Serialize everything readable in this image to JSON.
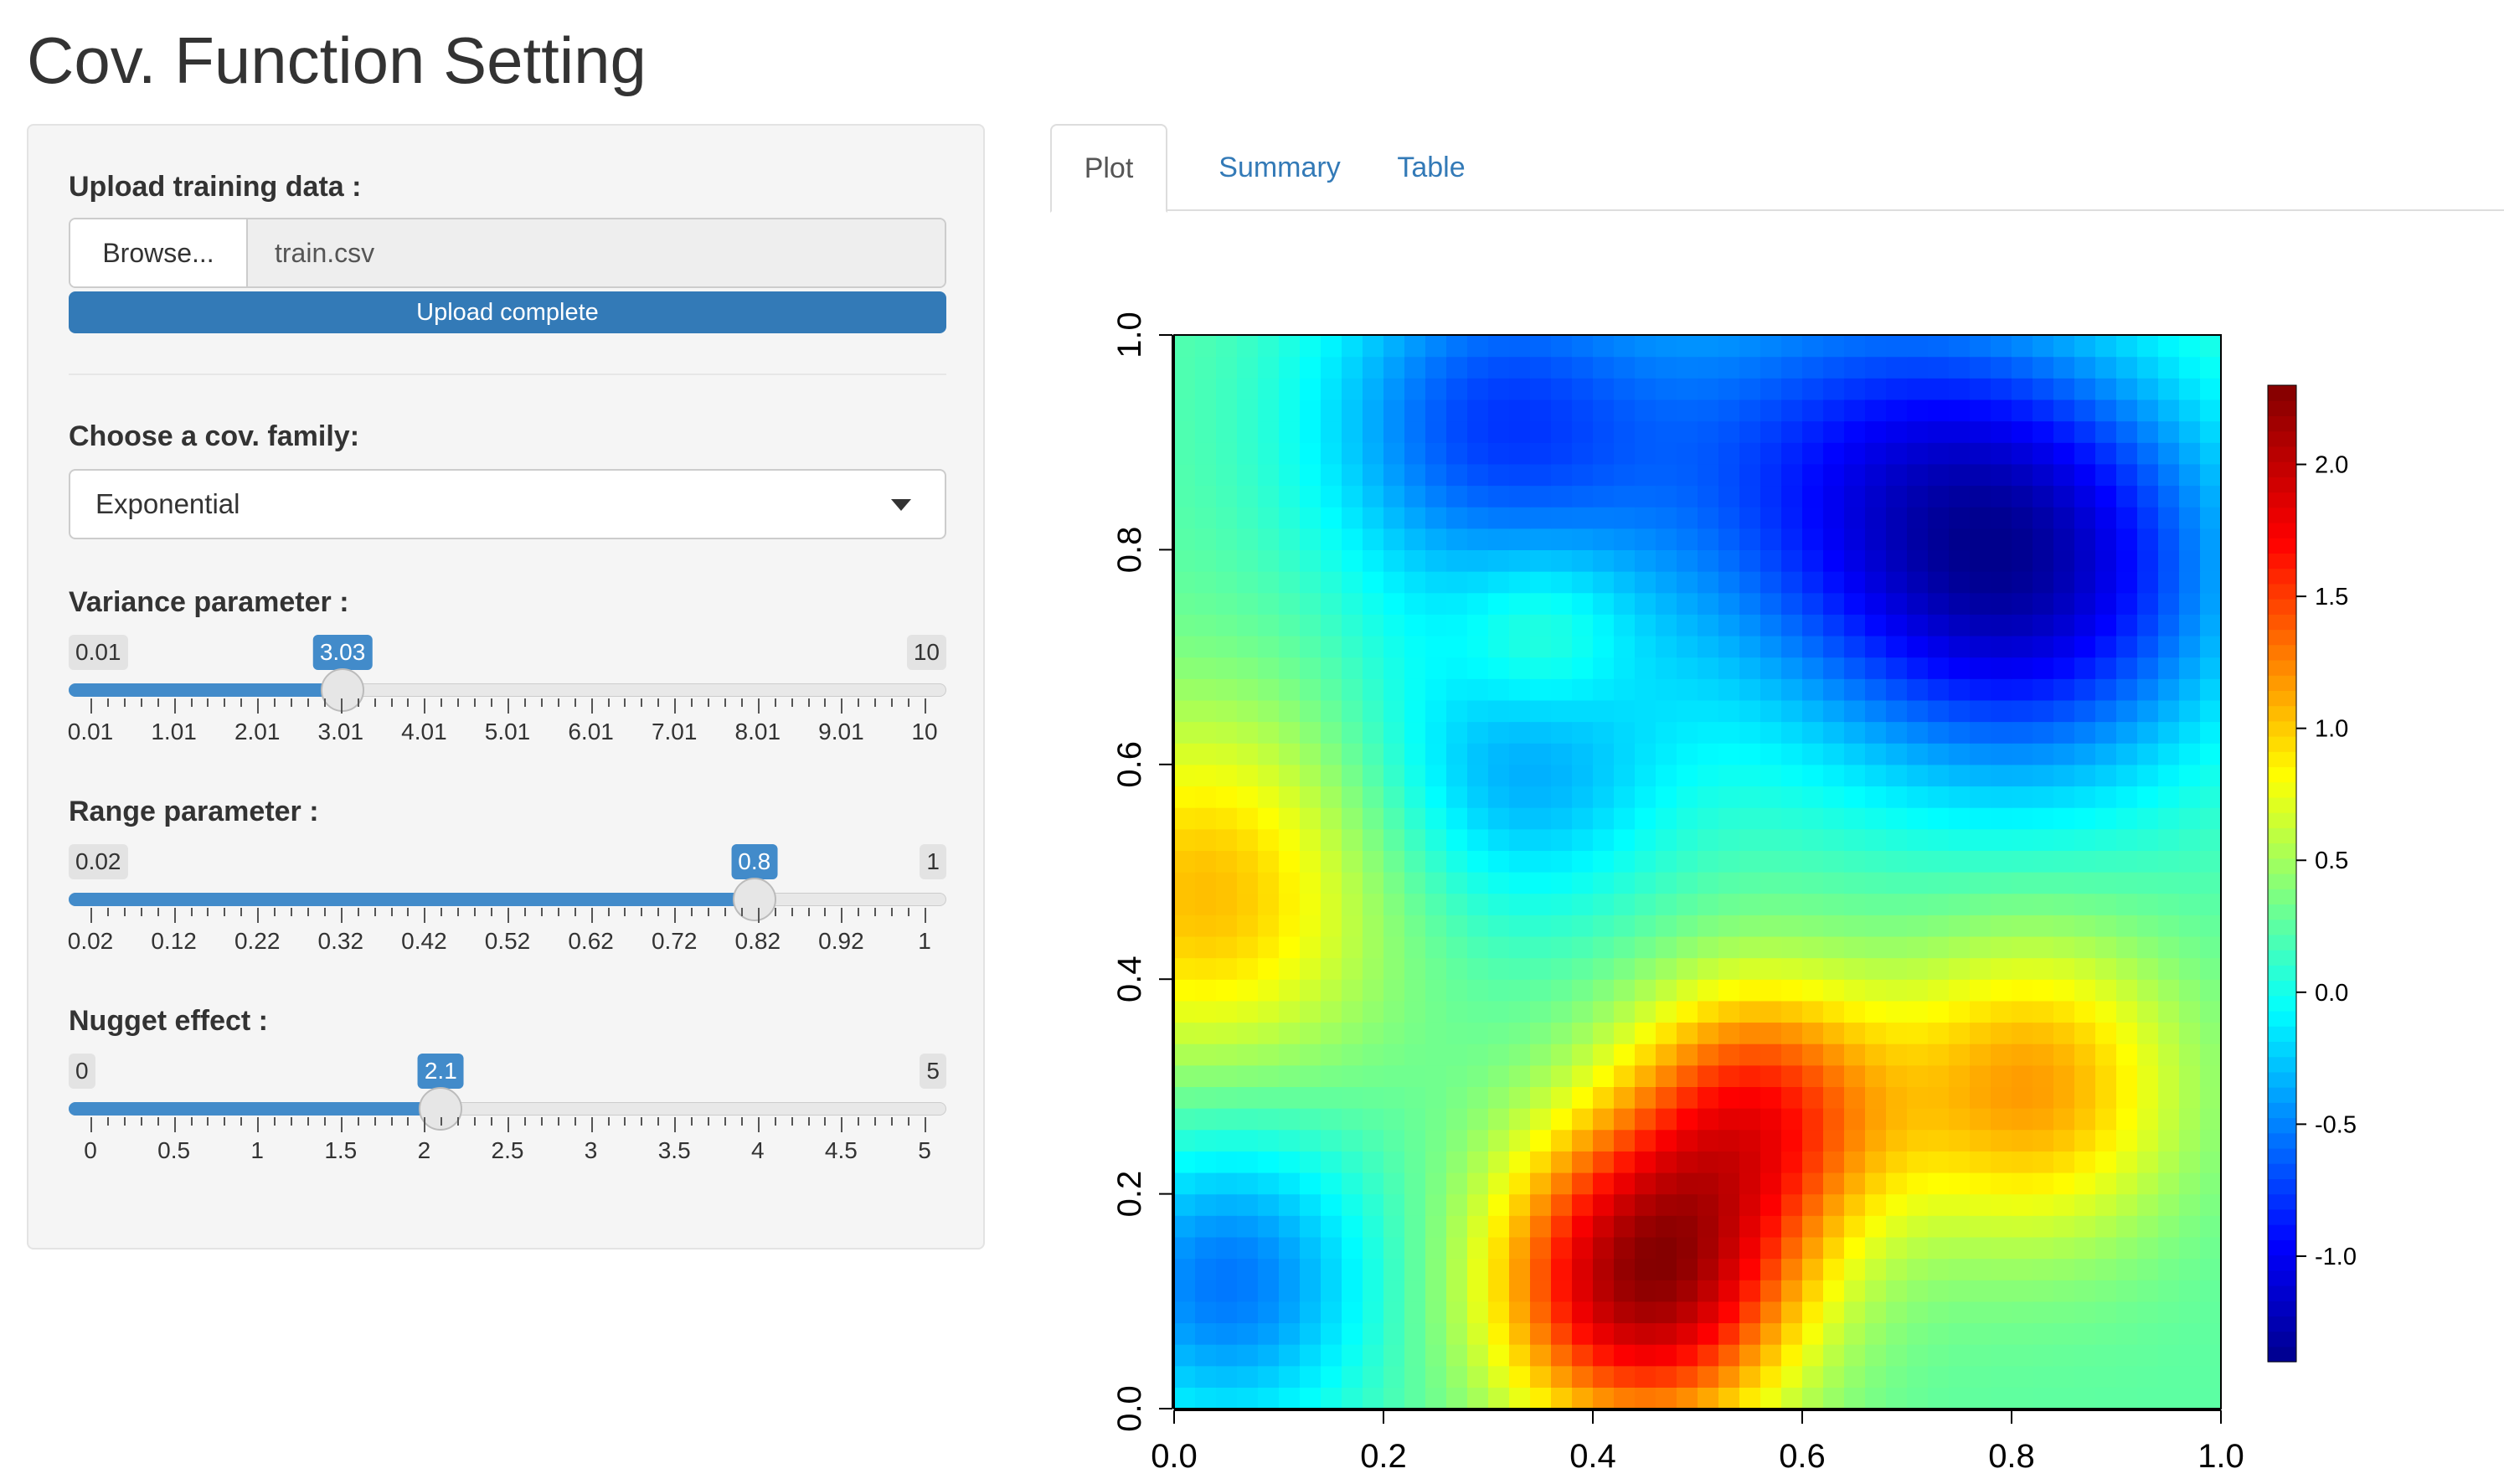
{
  "page_title": "Cov. Function Setting",
  "upload": {
    "label": "Upload training data :",
    "browse_label": "Browse...",
    "file_name": "train.csv",
    "progress_text": "Upload complete",
    "progress_fraction": 1.0
  },
  "family": {
    "label": "Choose a cov. family:",
    "selected": "Exponential"
  },
  "sliders": [
    {
      "id": "variance",
      "label": "Variance parameter :",
      "min": 0.01,
      "max": 10,
      "value": 3.03,
      "min_label": "0.01",
      "max_label": "10",
      "value_label": "3.03",
      "ticks": [
        "0.01",
        "1.01",
        "2.01",
        "3.01",
        "4.01",
        "5.01",
        "6.01",
        "7.01",
        "8.01",
        "9.01",
        "10"
      ]
    },
    {
      "id": "range",
      "label": "Range parameter :",
      "min": 0.02,
      "max": 1,
      "value": 0.8,
      "min_label": "0.02",
      "max_label": "1",
      "value_label": "0.8",
      "ticks": [
        "0.02",
        "0.12",
        "0.22",
        "0.32",
        "0.42",
        "0.52",
        "0.62",
        "0.72",
        "0.82",
        "0.92",
        "1"
      ]
    },
    {
      "id": "nugget",
      "label": "Nugget effect :",
      "min": 0,
      "max": 5,
      "value": 2.1,
      "min_label": "0",
      "max_label": "5",
      "value_label": "2.1",
      "ticks": [
        "0",
        "0.5",
        "1",
        "1.5",
        "2",
        "2.5",
        "3",
        "3.5",
        "4",
        "4.5",
        "5"
      ]
    }
  ],
  "tabs": [
    {
      "label": "Plot",
      "active": true
    },
    {
      "label": "Summary",
      "active": false
    },
    {
      "label": "Table",
      "active": false
    }
  ],
  "colors": {
    "accent": "#337ab7",
    "slider_fill": "#428bca",
    "link": "#337ab7"
  },
  "chart_data": {
    "type": "heatmap",
    "title": "",
    "xlabel": "",
    "ylabel": "",
    "xlim": [
      0,
      1
    ],
    "ylim": [
      0,
      1
    ],
    "x_ticks": [
      "0.0",
      "0.2",
      "0.4",
      "0.6",
      "0.8",
      "1.0"
    ],
    "y_ticks": [
      "0.0",
      "0.2",
      "0.4",
      "0.6",
      "0.8",
      "1.0"
    ],
    "colorbar": {
      "range": [
        -1.4,
        2.3
      ],
      "ticks": [
        "-1.0",
        "-0.5",
        "0.0",
        "0.5",
        "1.0",
        "1.5",
        "2.0"
      ],
      "colormap": "tim.colors (dark blue - blue - cyan - yellow - red - dark red)"
    },
    "grid_size": [
      50,
      50
    ],
    "features": [
      {
        "x": 0.45,
        "y": 0.12,
        "amplitude": 1.9,
        "width": 0.1
      },
      {
        "x": 0.56,
        "y": 0.28,
        "amplitude": 1.2,
        "width": 0.09
      },
      {
        "x": 0.82,
        "y": 0.3,
        "amplitude": 0.9,
        "width": 0.1
      },
      {
        "x": 0.03,
        "y": 0.48,
        "amplitude": 0.8,
        "width": 0.12
      },
      {
        "x": 0.82,
        "y": 0.78,
        "amplitude": -1.3,
        "width": 0.14
      },
      {
        "x": 0.3,
        "y": 0.92,
        "amplitude": -0.9,
        "width": 0.12
      },
      {
        "x": 0.05,
        "y": 0.12,
        "amplitude": -0.8,
        "width": 0.1
      },
      {
        "x": 0.33,
        "y": 0.6,
        "amplitude": -0.6,
        "width": 0.1
      },
      {
        "x": 0.62,
        "y": 0.88,
        "amplitude": -0.8,
        "width": 0.16
      },
      {
        "x": 0.35,
        "y": 0.72,
        "amplitude": 0.4,
        "width": 0.06
      }
    ],
    "baseline": 0.25
  }
}
